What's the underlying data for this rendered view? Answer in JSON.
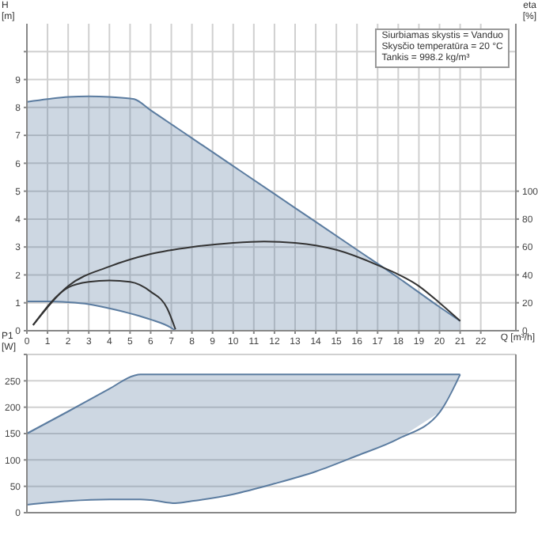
{
  "chart_data": [
    {
      "type": "line",
      "ylabel": "H\n[m]",
      "y2label": "eta\n[%]",
      "xlabel": "Q [m³/h]",
      "annotations": [
        "Siurbiamas skystis = Vanduo",
        "Skysčio temperatūra = 20 °C",
        "Tankis = 998.2 kg/m³"
      ],
      "xlim": [
        0,
        23.7
      ],
      "xticks": [
        0,
        1,
        2,
        3,
        4,
        5,
        6,
        7,
        8,
        9,
        10,
        11,
        12,
        13,
        14,
        15,
        16,
        17,
        18,
        19,
        20,
        21,
        22
      ],
      "ylim": [
        0,
        11
      ],
      "yticks": [
        0,
        1,
        2,
        3,
        4,
        5,
        6,
        7,
        8,
        9,
        {
          "value": 10,
          "label": null
        }
      ],
      "y2lim": [
        0,
        220
      ],
      "y2ticks": [
        0,
        20,
        40,
        60,
        80,
        100
      ],
      "grid": true,
      "x": [
        0,
        1,
        2,
        3,
        4,
        5,
        5.2,
        6,
        7,
        7.2,
        8,
        10,
        12,
        14,
        16,
        18,
        20,
        21
      ],
      "series": [
        {
          "color": "#5b7ca0",
          "values": [
            8.2,
            8.3,
            8.38,
            8.4,
            8.38,
            8.32,
            8.3,
            7.9,
            7.4,
            7.3,
            6.9,
            5.9,
            4.9,
            3.9,
            2.9,
            1.9,
            0.85,
            0.35
          ],
          "lower": [
            1.05,
            1.05,
            1.02,
            0.95,
            0.8,
            0.62,
            0.58,
            0.4,
            0.1,
            0,
            0,
            0,
            0,
            0,
            0,
            0,
            0,
            0
          ],
          "upper": [
            8.2,
            8.3,
            8.38,
            8.4,
            8.38,
            8.32,
            8.3,
            7.9,
            7.4,
            7.3,
            6.9,
            5.9,
            4.9,
            3.9,
            2.9,
            1.9,
            0.85,
            0.35
          ]
        },
        {
          "color": "#5b7ca0",
          "x": [
            0,
            1,
            2,
            3,
            4,
            5,
            5.2,
            6,
            7,
            7.2
          ],
          "values": [
            1.05,
            1.05,
            1.02,
            0.95,
            0.8,
            0.62,
            0.58,
            0.4,
            0.1,
            0
          ]
        },
        {
          "axis": "y2",
          "color": "#333333",
          "x": [
            0.3,
            2,
            4,
            6,
            8,
            10,
            11.5,
            13,
            15,
            17,
            19,
            20,
            21
          ],
          "values": [
            4,
            32,
            46,
            55,
            60,
            63,
            64,
            63,
            58,
            47,
            32,
            20,
            7
          ]
        },
        {
          "axis": "y2",
          "color": "#333333",
          "x": [
            0.3,
            2,
            3,
            4,
            5,
            6,
            6.8,
            7.2
          ],
          "values": [
            4,
            31,
            35,
            36,
            35,
            28,
            16,
            1
          ]
        }
      ]
    },
    {
      "type": "line",
      "ylabel": "P1\n[W]",
      "tick_labels": "y",
      "xlim": [
        0,
        23.7
      ],
      "xticks": [
        0,
        1,
        2,
        3,
        4,
        5,
        6,
        7,
        8,
        9,
        10,
        11,
        12,
        13,
        14,
        15,
        16,
        17,
        18,
        19,
        20,
        21,
        22
      ],
      "ylim": [
        0,
        300
      ],
      "yticks": [
        0,
        50,
        100,
        150,
        200,
        250,
        {
          "value": 300,
          "label": null
        }
      ],
      "grid": true,
      "x": [
        0,
        2,
        4,
        5.2,
        5.5,
        6,
        7.2,
        8,
        10,
        12,
        14,
        16,
        18,
        20,
        21
      ],
      "series": [
        {
          "color": "#5b7ca0",
          "values": [
            150,
            192,
            235,
            260,
            262,
            262,
            262,
            262,
            262,
            262,
            262,
            262,
            262,
            262,
            262
          ],
          "lower": [
            15,
            22,
            25,
            25,
            25,
            24,
            18,
            22,
            35,
            55,
            78,
            108,
            140,
            190,
            262
          ],
          "upper": [
            150,
            192,
            235,
            260,
            262,
            262,
            262,
            262,
            262,
            262,
            262,
            262,
            262,
            262,
            262
          ]
        },
        {
          "color": "#5b7ca0",
          "values": [
            15,
            22,
            25,
            25,
            25,
            24,
            18,
            22,
            35,
            55,
            78,
            108,
            140,
            190,
            262
          ]
        }
      ]
    }
  ]
}
